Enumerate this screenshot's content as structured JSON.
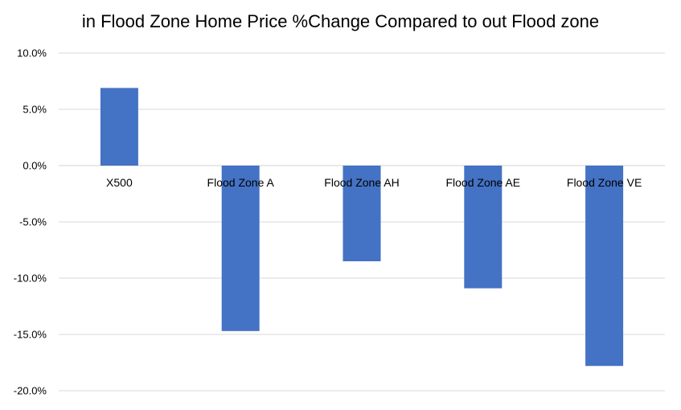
{
  "chart_data": {
    "type": "bar",
    "title": "in Flood Zone Home Price %Change Compared to out Flood zone",
    "xlabel": "",
    "ylabel": "",
    "categories": [
      "X500",
      "Flood Zone A",
      "Flood Zone AH",
      "Flood Zone AE",
      "Flood Zone VE"
    ],
    "values": [
      6.9,
      -14.7,
      -8.5,
      -10.9,
      -17.8
    ],
    "ylim": [
      -20,
      10
    ],
    "yticks": [
      10,
      5,
      0,
      -5,
      -10,
      -15,
      -20
    ],
    "ytick_labels": [
      "10.0%",
      "5.0%",
      "0.0%",
      "-5.0%",
      "-10.0%",
      "-15.0%",
      "-20.0%"
    ],
    "grid": true,
    "legend": false,
    "bar_color": "#4472C4",
    "gridline_color": "#D9D9D9"
  }
}
